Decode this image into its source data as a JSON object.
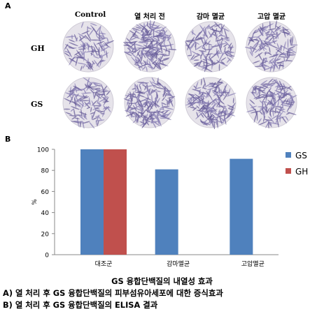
{
  "panelA": {
    "letter": "A",
    "columns": [
      "Control",
      "열 처리 전",
      "감마 멸균",
      "고압 멸균"
    ],
    "rows": [
      "GH",
      "GS"
    ]
  },
  "panelB": {
    "letter": "B"
  },
  "chart_data": {
    "type": "bar",
    "categories": [
      "대조군",
      "감마멸균",
      "고압멸균"
    ],
    "series": [
      {
        "name": "GS",
        "values": [
          100,
          81,
          91
        ],
        "color": "#4f81bd"
      },
      {
        "name": "GH",
        "values": [
          100,
          null,
          null
        ],
        "color": "#c0504d"
      }
    ],
    "ylabel": "%",
    "ylim": [
      0,
      100
    ],
    "yticks": [
      0,
      20,
      40,
      60,
      80,
      100
    ],
    "grid": false,
    "legend": "right"
  },
  "captions": {
    "title": "GS 융합단백질의 내열성 효과",
    "line_a": "A) 열 처리 후 GS 융합단백질의 피부섬유아세포에 대한 증식효과",
    "line_b": "B) 열 처리 후 GS 융합단백질의 ELISA 결과"
  }
}
